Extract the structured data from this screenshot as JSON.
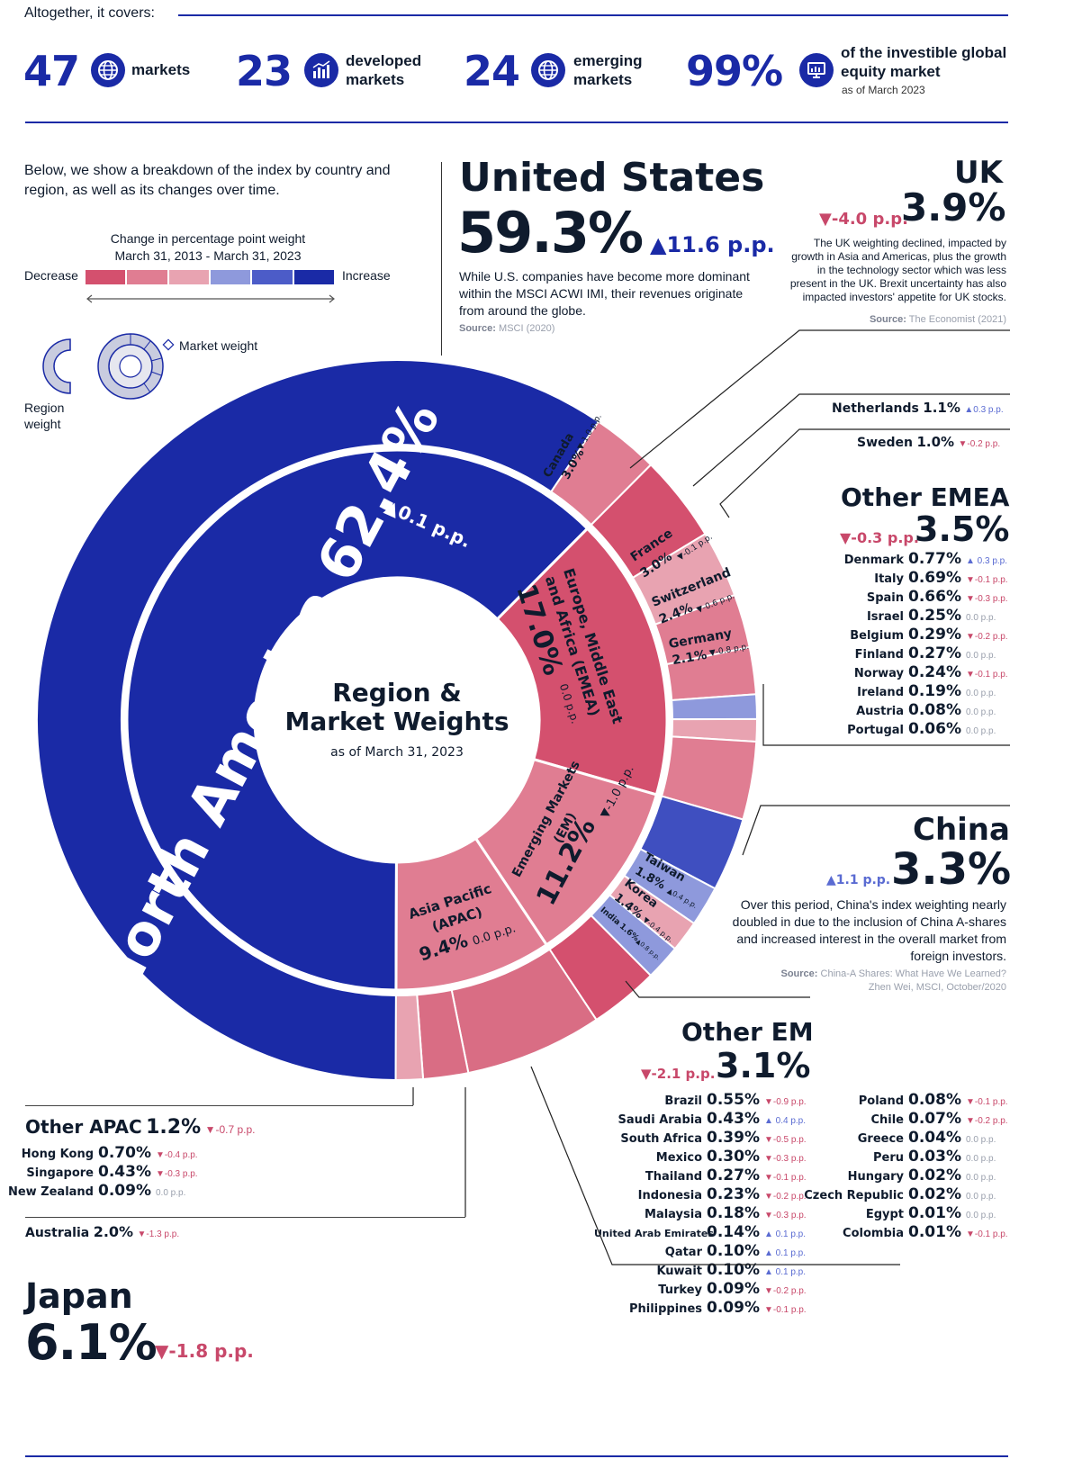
{
  "header": {
    "intro": "Altogether, it covers:",
    "stats": [
      {
        "number": "47",
        "icon": "globe-icon",
        "label": "markets"
      },
      {
        "number": "23",
        "icon": "bar-chart-icon",
        "label": "developed markets"
      },
      {
        "number": "24",
        "icon": "globe-icon",
        "label": "emerging markets"
      },
      {
        "number": "99%",
        "icon": "monitor-chart-icon",
        "label": "of the investible global equity market",
        "sublabel": "as of March 2023"
      }
    ]
  },
  "intro_text": "Below, we show a breakdown of the index by country and region, as well as its changes over time.",
  "legend": {
    "title_line1": "Change in percentage point weight",
    "title_line2": "March 31, 2013 - March 31, 2023",
    "decrease": "Decrease",
    "increase": "Increase",
    "colors": [
      "#d4506e",
      "#e07d92",
      "#e8a3b1",
      "#8e99dc",
      "#4c5cc8",
      "#1a2aa6"
    ],
    "market_weight": "Market weight",
    "region_weight": "Region weight"
  },
  "center": {
    "title": "Region & Market Weights",
    "subtitle": "as of March 31, 2023"
  },
  "callouts": {
    "us": {
      "name": "United States",
      "value": "59.3%",
      "change": "▲11.6 p.p.",
      "text": "While U.S. companies have become more dominant within the MSCI ACWI IMI, their revenues originate from around the globe.",
      "source_label": "Source:",
      "source": "MSCI (2020)"
    },
    "uk": {
      "name": "UK",
      "value": "3.9%",
      "change": "▼-4.0 p.p.",
      "text": "The UK weighting declined, impacted by growth in Asia and Americas, plus the growth in the technology sector which was less present in the UK. Brexit uncertainty has also impacted investors' appetite for UK stocks.",
      "source_label": "Source:",
      "source": "The Economist (2021)"
    },
    "netherlands": {
      "name": "Netherlands",
      "value": "1.1%",
      "change": "▲0.3 p.p."
    },
    "sweden": {
      "name": "Sweden",
      "value": "1.0%",
      "change": "▼-0.2 p.p."
    },
    "china": {
      "name": "China",
      "value": "3.3%",
      "change": "▲1.1 p.p.",
      "text": "Over this period, China's index weighting nearly doubled in due to the inclusion of China A-shares and increased interest in the overall market from foreign investors.",
      "source_label": "Source:",
      "source_line1": "China-A Shares: What Have We Learned?",
      "source_line2": "Zhen Wei, MSCI, October/2020"
    },
    "japan": {
      "name": "Japan",
      "value": "6.1%",
      "change": "▼-1.8 p.p."
    },
    "australia": {
      "name": "Australia",
      "value": "2.0%",
      "change": "▼-1.3 p.p."
    }
  },
  "other_emea": {
    "title": "Other EMEA",
    "value": "3.5%",
    "change": "▼-0.3 p.p.",
    "items": [
      {
        "name": "Denmark",
        "value": "0.77%",
        "change": "▲ 0.3 p.p.",
        "dir": "inc"
      },
      {
        "name": "Italy",
        "value": "0.69%",
        "change": "▼-0.1 p.p.",
        "dir": "dec"
      },
      {
        "name": "Spain",
        "value": "0.66%",
        "change": "▼-0.3 p.p.",
        "dir": "dec"
      },
      {
        "name": "Israel",
        "value": "0.25%",
        "change": "0.0 p.p.",
        "dir": "neu"
      },
      {
        "name": "Belgium",
        "value": "0.29%",
        "change": "▼-0.2 p.p.",
        "dir": "dec"
      },
      {
        "name": "Finland",
        "value": "0.27%",
        "change": "0.0 p.p.",
        "dir": "neu"
      },
      {
        "name": "Norway",
        "value": "0.24%",
        "change": "▼-0.1 p.p.",
        "dir": "dec"
      },
      {
        "name": "Ireland",
        "value": "0.19%",
        "change": "0.0 p.p.",
        "dir": "neu"
      },
      {
        "name": "Austria",
        "value": "0.08%",
        "change": "0.0 p.p.",
        "dir": "neu"
      },
      {
        "name": "Portugal",
        "value": "0.06%",
        "change": "0.0 p.p.",
        "dir": "neu"
      }
    ]
  },
  "other_em": {
    "title": "Other EM",
    "value": "3.1%",
    "change": "▼-2.1 p.p.",
    "col1": [
      {
        "name": "Brazil",
        "value": "0.55%",
        "change": "▼-0.9 p.p.",
        "dir": "dec"
      },
      {
        "name": "Saudi Arabia",
        "value": "0.43%",
        "change": "▲ 0.4 p.p.",
        "dir": "inc"
      },
      {
        "name": "South Africa",
        "value": "0.39%",
        "change": "▼-0.5 p.p.",
        "dir": "dec"
      },
      {
        "name": "Mexico",
        "value": "0.30%",
        "change": "▼-0.3 p.p.",
        "dir": "dec"
      },
      {
        "name": "Thailand",
        "value": "0.27%",
        "change": "▼-0.1 p.p.",
        "dir": "dec"
      },
      {
        "name": "Indonesia",
        "value": "0.23%",
        "change": "▼-0.2 p.p.",
        "dir": "dec"
      },
      {
        "name": "Malaysia",
        "value": "0.18%",
        "change": "▼-0.3 p.p.",
        "dir": "dec"
      },
      {
        "name": "United Arab Emirates",
        "value": "0.14%",
        "change": "▲ 0.1 p.p.",
        "dir": "inc"
      },
      {
        "name": "Qatar",
        "value": "0.10%",
        "change": "▲ 0.1 p.p.",
        "dir": "inc"
      },
      {
        "name": "Kuwait",
        "value": "0.10%",
        "change": "▲ 0.1 p.p.",
        "dir": "inc"
      },
      {
        "name": "Turkey",
        "value": "0.09%",
        "change": "▼-0.2 p.p.",
        "dir": "dec"
      },
      {
        "name": "Philippines",
        "value": "0.09%",
        "change": "▼-0.1 p.p.",
        "dir": "dec"
      }
    ],
    "col2": [
      {
        "name": "Poland",
        "value": "0.08%",
        "change": "▼-0.1 p.p.",
        "dir": "dec"
      },
      {
        "name": "Chile",
        "value": "0.07%",
        "change": "▼-0.2 p.p.",
        "dir": "dec"
      },
      {
        "name": "Greece",
        "value": "0.04%",
        "change": "0.0 p.p.",
        "dir": "neu"
      },
      {
        "name": "Peru",
        "value": "0.03%",
        "change": "0.0 p.p.",
        "dir": "neu"
      },
      {
        "name": "Hungary",
        "value": "0.02%",
        "change": "0.0 p.p.",
        "dir": "neu"
      },
      {
        "name": "Czech Republic",
        "value": "0.02%",
        "change": "0.0 p.p.",
        "dir": "neu"
      },
      {
        "name": "Egypt",
        "value": "0.01%",
        "change": "0.0 p.p.",
        "dir": "neu"
      },
      {
        "name": "Colombia",
        "value": "0.01%",
        "change": "▼-0.1 p.p.",
        "dir": "dec"
      }
    ]
  },
  "other_apac": {
    "title": "Other APAC",
    "value": "1.2%",
    "change": "▼-0.7 p.p.",
    "items": [
      {
        "name": "Hong Kong",
        "value": "0.70%",
        "change": "▼-0.4 p.p.",
        "dir": "dec"
      },
      {
        "name": "Singapore",
        "value": "0.43%",
        "change": "▼-0.3 p.p.",
        "dir": "dec"
      },
      {
        "name": "New Zealand",
        "value": "0.09%",
        "change": "0.0 p.p.",
        "dir": "neu"
      }
    ]
  },
  "chart_data": {
    "type": "sunburst",
    "title": "Region & Market Weights",
    "subtitle": "as of March 31, 2023",
    "regions": [
      {
        "name": "North America",
        "weight": 62.4,
        "change": 0.1,
        "label": "North America 62.4%",
        "change_label": "▲0.1 p.p.",
        "color": "#1a2aa6",
        "markets": [
          {
            "name": "United States",
            "weight": 59.3,
            "change": 11.6,
            "label": "",
            "color": "#1a2aa6"
          },
          {
            "name": "Canada",
            "weight": 3.0,
            "change": -1.0,
            "label": "Canada",
            "value_label": "3.0%",
            "change_label": "▼-1.0 p.p.",
            "color": "#e07d92"
          }
        ]
      },
      {
        "name": "Europe, Middle East and Africa (EMEA)",
        "weight": 17.0,
        "change": 0.0,
        "label": "Europe, Middle East and Africa (EMEA)",
        "value_label": "17.0%",
        "change_label": "0.0 p.p.",
        "color": "#d4506e",
        "markets": [
          {
            "name": "UK",
            "weight": 3.9,
            "change": -4.0,
            "label": "",
            "color": "#d4506e"
          },
          {
            "name": "France",
            "weight": 3.0,
            "change": -0.1,
            "label": "France",
            "value_label": "3.0%",
            "change_label": "▼-0.1 p.p.",
            "color": "#e8a3b1"
          },
          {
            "name": "Switzerland",
            "weight": 2.4,
            "change": -0.6,
            "label": "Switzerland",
            "value_label": "2.4%",
            "change_label": "▼-0.6 p.p.",
            "color": "#e07d92"
          },
          {
            "name": "Germany",
            "weight": 2.1,
            "change": -0.8,
            "label": "Germany",
            "value_label": "2.1%",
            "change_label": "▼-0.8 p.p.",
            "color": "#e07d92"
          },
          {
            "name": "Netherlands",
            "weight": 1.1,
            "change": 0.3,
            "label": "",
            "color": "#8e99dc"
          },
          {
            "name": "Sweden",
            "weight": 1.0,
            "change": -0.2,
            "label": "",
            "color": "#e8a3b1"
          },
          {
            "name": "Other EMEA",
            "weight": 3.5,
            "change": -0.3,
            "label": "",
            "color": "#e07d92"
          }
        ]
      },
      {
        "name": "Emerging Markets (EM)",
        "weight": 11.2,
        "change": -1.0,
        "label": "Emerging Markets (EM)",
        "value_label": "11.2%",
        "change_label": "▼-1.0 p.p.",
        "color": "#e07d92",
        "markets": [
          {
            "name": "China",
            "weight": 3.3,
            "change": 1.1,
            "label": "",
            "color": "#3f4fc0"
          },
          {
            "name": "Taiwan",
            "weight": 1.8,
            "change": 0.4,
            "label": "Taiwan",
            "value_label": "1.8%",
            "change_label": "▲0.4 p.p.",
            "color": "#8e99dc"
          },
          {
            "name": "Korea",
            "weight": 1.4,
            "change": -0.4,
            "label": "Korea",
            "value_label": "1.4%",
            "change_label": "▼-0.4 p.p.",
            "color": "#e8a3b1"
          },
          {
            "name": "India",
            "weight": 1.6,
            "change": 0.8,
            "label": "India",
            "value_label": "1.6%",
            "change_label": "▲0.8 p.p.",
            "color": "#8e99dc"
          },
          {
            "name": "Other EM",
            "weight": 3.1,
            "change": -2.1,
            "label": "",
            "color": "#d4506e"
          }
        ]
      },
      {
        "name": "Asia Pacific (APAC)",
        "weight": 9.4,
        "change": 0.0,
        "label": "Asia Pacific (APAC)",
        "value_label": "9.4%",
        "change_label": "0.0 p.p.",
        "color": "#e07d92",
        "markets": [
          {
            "name": "Japan",
            "weight": 6.1,
            "change": -1.8,
            "label": "",
            "color": "#d96d84"
          },
          {
            "name": "Australia",
            "weight": 2.0,
            "change": -1.3,
            "label": "",
            "color": "#d96d84"
          },
          {
            "name": "Other APAC",
            "weight": 1.2,
            "change": -0.7,
            "label": "",
            "color": "#e8a3b1"
          }
        ]
      }
    ]
  }
}
